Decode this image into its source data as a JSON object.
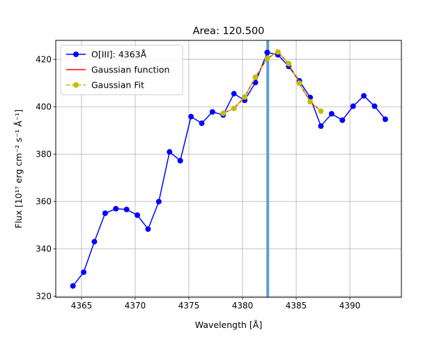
{
  "chart_data": {
    "type": "line",
    "title": "Area: 120.500",
    "xlabel": "Wavelength [Å]",
    "ylabel": "Flux [10¹⁷ erg cm⁻² s⁻¹ Å⁻¹]",
    "xlim": [
      4362.6,
      4394.8
    ],
    "ylim": [
      319.5,
      428.0
    ],
    "xticks": [
      4365,
      4370,
      4375,
      4380,
      4385,
      4390
    ],
    "yticks": [
      320,
      340,
      360,
      380,
      400,
      420
    ],
    "grid": true,
    "legend_position": "top-left",
    "vline": {
      "x": 4382.35,
      "color": "#5b9fd3"
    },
    "series": [
      {
        "name": "O[III]: 4363Å",
        "color": "#0000ff",
        "style": "line-marker",
        "x": [
          4364.2,
          4365.2,
          4366.2,
          4367.2,
          4368.2,
          4369.2,
          4370.2,
          4371.2,
          4372.2,
          4373.2,
          4374.2,
          4375.2,
          4376.2,
          4377.2,
          4378.2,
          4379.2,
          4380.2,
          4381.2,
          4382.3,
          4383.3,
          4384.3,
          4385.3,
          4386.3,
          4387.3,
          4388.3,
          4389.3,
          4390.3,
          4391.3,
          4392.3,
          4393.3
        ],
        "y": [
          324.3,
          330.1,
          343.0,
          355.0,
          356.9,
          356.6,
          354.2,
          348.3,
          359.9,
          380.9,
          377.2,
          395.8,
          393.0,
          397.8,
          396.5,
          405.5,
          402.7,
          410.2,
          422.9,
          421.9,
          417.0,
          410.9,
          403.9,
          391.8,
          397.0,
          394.3,
          400.2,
          404.6,
          400.2,
          394.7
        ]
      },
      {
        "name": "Gaussian function",
        "color": "#ff0000",
        "style": "line",
        "x": [
          4378.2,
          4379.2,
          4380.2,
          4381.2,
          4382.3,
          4383.3,
          4384.3,
          4385.3,
          4386.3,
          4387.3
        ],
        "y": [
          397.2,
          399.3,
          404.1,
          412.4,
          420.4,
          423.1,
          418.2,
          409.9,
          402.1,
          398.1
        ]
      },
      {
        "name": "Gaussian Fit",
        "color": "#bfbf00",
        "style": "dashed-marker",
        "x": [
          4378.2,
          4379.2,
          4380.2,
          4381.2,
          4382.3,
          4383.3,
          4384.3,
          4385.3,
          4386.3,
          4387.3
        ],
        "y": [
          397.2,
          399.3,
          404.1,
          412.4,
          420.4,
          423.1,
          418.2,
          409.9,
          402.1,
          398.1
        ]
      }
    ]
  }
}
